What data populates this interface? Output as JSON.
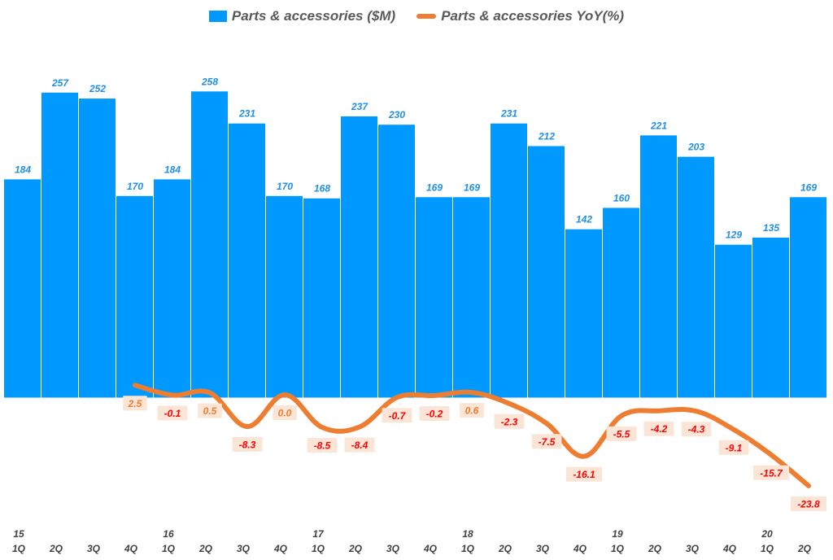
{
  "chart_data": {
    "type": "bar",
    "title": "",
    "xlabel": "",
    "ylabel": "",
    "legend_position": "top-center",
    "categories": [
      "1Q",
      "2Q",
      "3Q",
      "4Q",
      "1Q",
      "2Q",
      "3Q",
      "4Q",
      "1Q",
      "2Q",
      "3Q",
      "4Q",
      "1Q",
      "2Q",
      "3Q",
      "4Q",
      "1Q",
      "2Q",
      "3Q",
      "4Q",
      "1Q",
      "2Q"
    ],
    "year_labels": [
      "15",
      "",
      "",
      "",
      "16",
      "",
      "",
      "",
      "17",
      "",
      "",
      "",
      "18",
      "",
      "",
      "",
      "19",
      "",
      "",
      "",
      "20",
      ""
    ],
    "series": [
      {
        "name": "Parts & accessories ($M)",
        "type": "bar",
        "color": "#0099ff",
        "values": [
          184,
          257,
          252,
          170,
          184,
          258,
          231,
          170,
          168,
          237,
          230,
          169,
          169,
          231,
          212,
          142,
          160,
          221,
          203,
          129,
          135,
          169
        ],
        "value_labels": [
          "184",
          "257",
          "252",
          "170",
          "184",
          "258",
          "231",
          "170",
          "168",
          "237",
          "230",
          "169",
          "169",
          "231",
          "212",
          "142",
          "160",
          "221",
          "203",
          "129",
          "135",
          "169"
        ]
      },
      {
        "name": "Parts & accessories  YoY(%)",
        "type": "line",
        "color": "#ed7d31",
        "values": [
          null,
          null,
          null,
          2.5,
          -0.1,
          0.5,
          -8.3,
          0.0,
          -8.5,
          -8.4,
          -0.7,
          -0.2,
          0.6,
          -2.3,
          -7.5,
          -16.1,
          -5.5,
          -4.2,
          -4.3,
          -9.1,
          -15.7,
          -23.8
        ],
        "value_labels": [
          "",
          "",
          "",
          "2.5",
          "-0.1",
          "0.5",
          "-8.3",
          "0.0",
          "-8.5",
          "-8.4",
          "-0.7",
          "-0.2",
          "0.6",
          "-2.3",
          "-7.5",
          "-16.1",
          "-5.5",
          "-4.2",
          "-4.3",
          "-9.1",
          "-15.7",
          "-23.8"
        ]
      }
    ],
    "colors": {
      "bar": "#0099ff",
      "bar_label": "#1f8fe6",
      "line": "#ed7d31",
      "label_box": "#fbe5d6",
      "negative_text": "#ff0000",
      "positive_text": "#ed7d31",
      "axis_text": "#404040"
    }
  }
}
